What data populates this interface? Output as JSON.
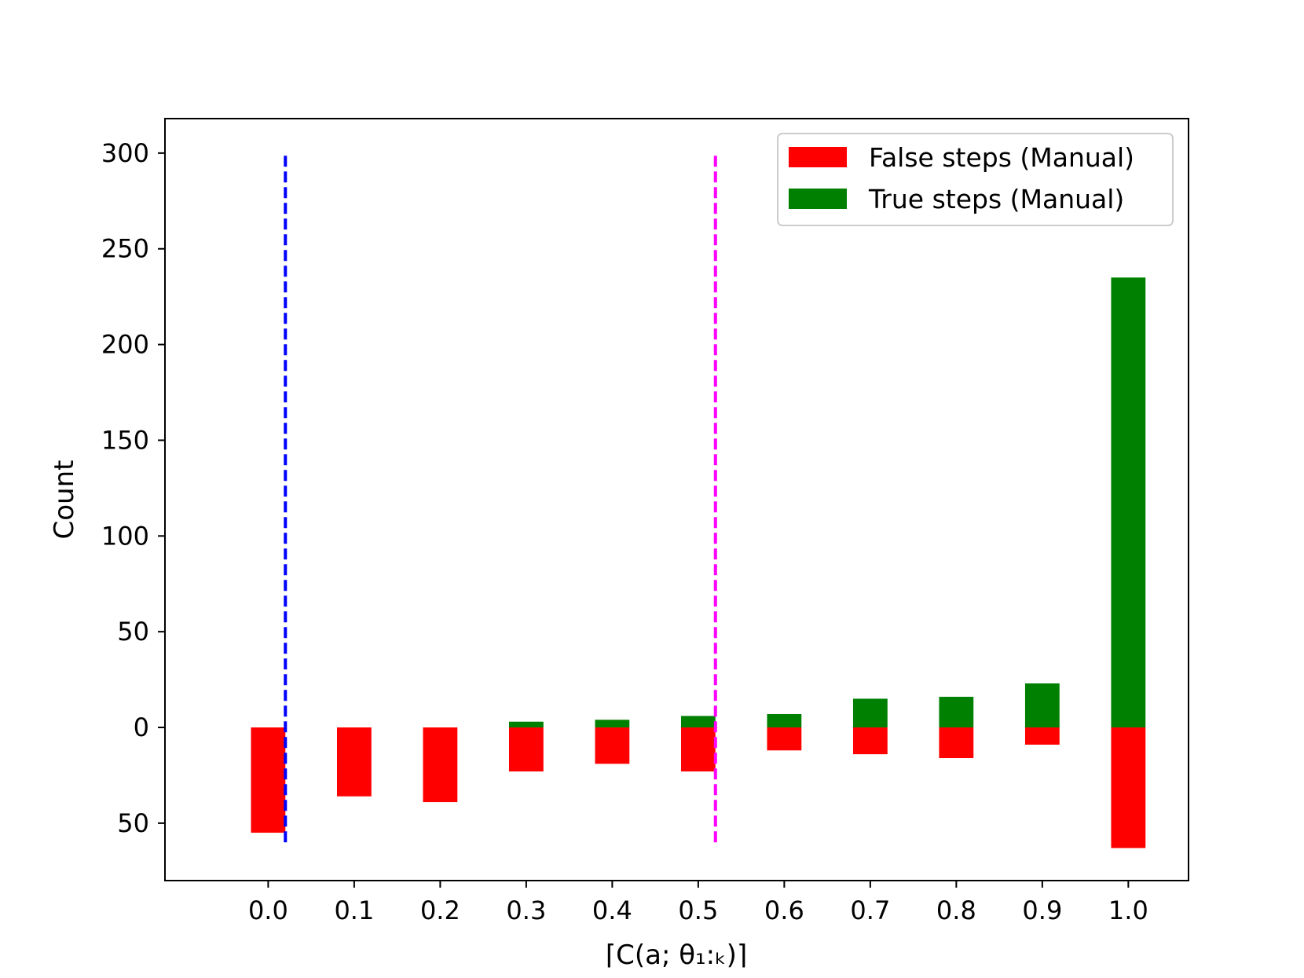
{
  "chart_data": {
    "type": "bar",
    "title": "",
    "xlabel": "⌈C(a; θ₁:ₖ)⌉",
    "ylabel": "Count",
    "categories": [
      "0.0",
      "0.1",
      "0.2",
      "0.3",
      "0.4",
      "0.5",
      "0.6",
      "0.7",
      "0.8",
      "0.9",
      "1.0"
    ],
    "x": [
      0.0,
      0.1,
      0.2,
      0.3,
      0.4,
      0.5,
      0.6,
      0.7,
      0.8,
      0.9,
      1.0
    ],
    "series": [
      {
        "name": "False steps (Manual)",
        "color": "#ff0000",
        "direction": "down",
        "values": [
          55,
          36,
          39,
          23,
          19,
          23,
          12,
          14,
          16,
          9,
          63
        ]
      },
      {
        "name": "True steps (Manual)",
        "color": "#008000",
        "direction": "up",
        "values": [
          0,
          0,
          0,
          3,
          4,
          6,
          7,
          15,
          16,
          23,
          235
        ]
      }
    ],
    "ylim": [
      -80,
      318
    ],
    "y_ticks": [
      {
        "value": 300,
        "label": "300"
      },
      {
        "value": 250,
        "label": "250"
      },
      {
        "value": 200,
        "label": "200"
      },
      {
        "value": 150,
        "label": "150"
      },
      {
        "value": 100,
        "label": "100"
      },
      {
        "value": 50,
        "label": "50"
      },
      {
        "value": 0,
        "label": "0"
      },
      {
        "value": -50,
        "label": "50"
      }
    ],
    "xlim": [
      -0.12,
      1.07
    ],
    "vlines": [
      {
        "x": 0.02,
        "y_from": -60,
        "y_to": 300,
        "color": "#0000ff",
        "style": "dashed"
      },
      {
        "x": 0.52,
        "y_from": -60,
        "y_to": 300,
        "color": "#ff00ff",
        "style": "dashed"
      }
    ],
    "legend_position": "top-right",
    "grid": false
  }
}
